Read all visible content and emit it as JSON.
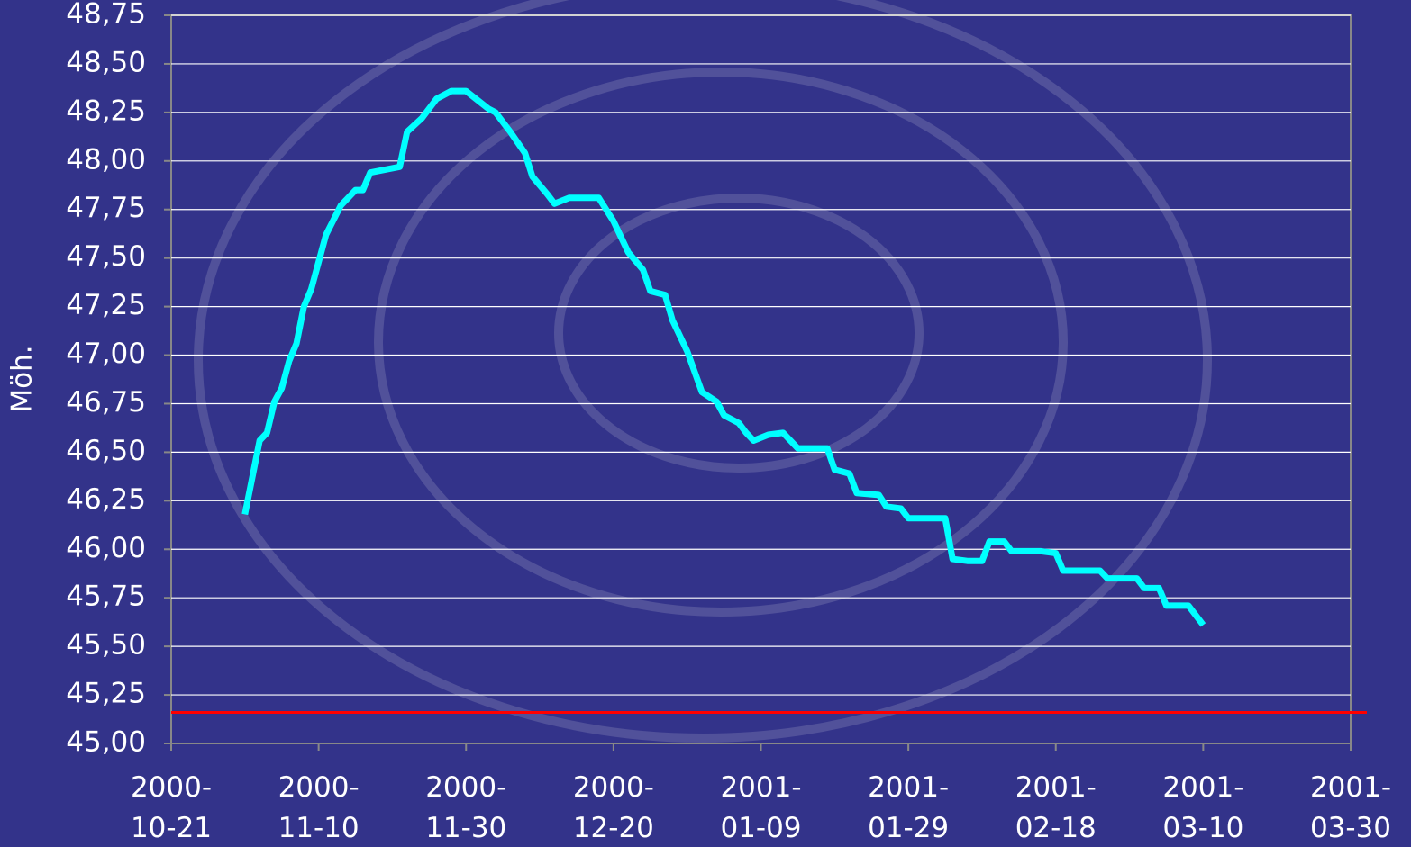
{
  "chart_data": {
    "type": "line",
    "y_label": "Möh.",
    "x": [
      "2000-10-31",
      "2000-11-02",
      "2000-11-03",
      "2000-11-04",
      "2000-11-05",
      "2000-11-06",
      "2000-11-07",
      "2000-11-08",
      "2000-11-09",
      "2000-11-11",
      "2000-11-13",
      "2000-11-15",
      "2000-11-16",
      "2000-11-17",
      "2000-11-21",
      "2000-11-22",
      "2000-11-24",
      "2000-11-26",
      "2000-11-28",
      "2000-11-30",
      "2000-12-03",
      "2000-12-04",
      "2000-12-06",
      "2000-12-08",
      "2000-12-09",
      "2000-12-11",
      "2000-12-12",
      "2000-12-14",
      "2000-12-18",
      "2000-12-20",
      "2000-12-22",
      "2000-12-24",
      "2000-12-25",
      "2000-12-27",
      "2000-12-28",
      "2000-12-30",
      "2001-01-01",
      "2001-01-03",
      "2001-01-04",
      "2001-01-06",
      "2001-01-07",
      "2001-01-08",
      "2001-01-10",
      "2001-01-12",
      "2001-01-14",
      "2001-01-18",
      "2001-01-19",
      "2001-01-21",
      "2001-01-22",
      "2001-01-25",
      "2001-01-26",
      "2001-01-28",
      "2001-01-29",
      "2001-02-03",
      "2001-02-04",
      "2001-02-06",
      "2001-02-08",
      "2001-02-09",
      "2001-02-11",
      "2001-02-12",
      "2001-02-16",
      "2001-02-18",
      "2001-02-19",
      "2001-02-24",
      "2001-02-25",
      "2001-03-01",
      "2001-03-02",
      "2001-03-04",
      "2001-03-05",
      "2001-03-08",
      "2001-03-10"
    ],
    "series": [
      {
        "color": "#00ffff",
        "values": [
          46.18,
          46.56,
          46.6,
          46.76,
          46.83,
          46.97,
          47.06,
          47.25,
          47.34,
          47.62,
          47.77,
          47.85,
          47.85,
          47.94,
          47.97,
          48.15,
          48.22,
          48.32,
          48.36,
          48.36,
          48.27,
          48.25,
          48.15,
          48.04,
          47.92,
          47.83,
          47.78,
          47.81,
          47.81,
          47.69,
          47.53,
          47.44,
          47.33,
          47.31,
          47.18,
          47.02,
          46.81,
          46.76,
          46.69,
          46.65,
          46.6,
          46.56,
          46.59,
          46.6,
          46.52,
          46.52,
          46.41,
          46.39,
          46.29,
          46.28,
          46.22,
          46.21,
          46.16,
          46.16,
          45.95,
          45.94,
          45.94,
          46.04,
          46.04,
          45.99,
          45.99,
          45.98,
          45.89,
          45.89,
          45.85,
          45.85,
          45.8,
          45.8,
          45.71,
          45.71,
          45.61
        ]
      }
    ],
    "reference_line": {
      "value": 45.16,
      "color": "#ff0000"
    },
    "xlim": [
      "2000-10-21",
      "2001-03-30"
    ],
    "xticks": [
      "2000-10-21",
      "2000-11-10",
      "2000-11-30",
      "2000-12-20",
      "2001-01-09",
      "2001-01-29",
      "2001-02-18",
      "2001-03-10",
      "2001-03-30"
    ],
    "ylim": [
      45,
      48.75
    ],
    "yticks": [
      {
        "value": 45,
        "label": "45,00"
      },
      {
        "value": 45.25,
        "label": "45,25"
      },
      {
        "value": 45.5,
        "label": "45,50"
      },
      {
        "value": 45.75,
        "label": "45,75"
      },
      {
        "value": 46,
        "label": "46,00"
      },
      {
        "value": 46.25,
        "label": "46,25"
      },
      {
        "value": 46.5,
        "label": "46,50"
      },
      {
        "value": 46.75,
        "label": "46,75"
      },
      {
        "value": 47,
        "label": "47,00"
      },
      {
        "value": 47.25,
        "label": "47,25"
      },
      {
        "value": 47.5,
        "label": "47,50"
      },
      {
        "value": 47.75,
        "label": "47,75"
      },
      {
        "value": 48,
        "label": "48,00"
      },
      {
        "value": 48.25,
        "label": "48,25"
      },
      {
        "value": 48.5,
        "label": "48,50"
      },
      {
        "value": 48.75,
        "label": "48,75"
      }
    ],
    "grid": true
  }
}
